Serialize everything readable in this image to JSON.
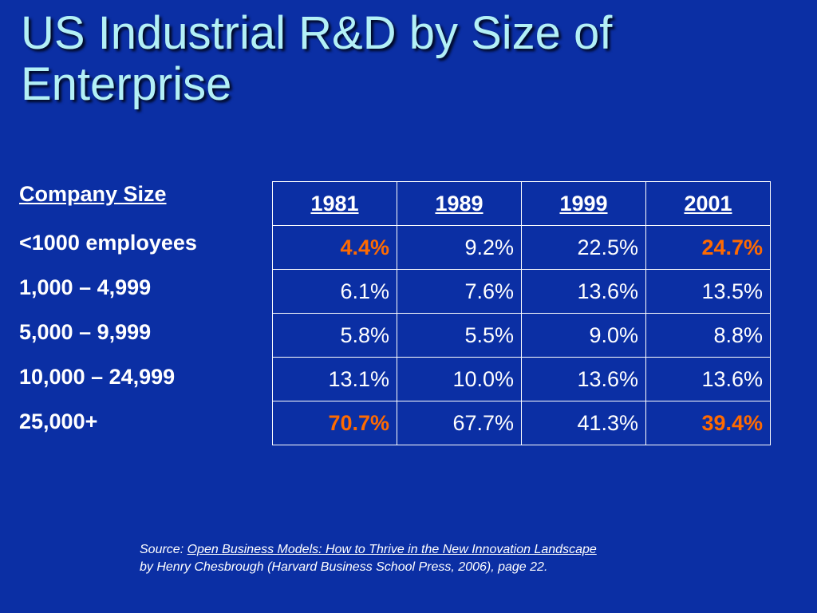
{
  "slide": {
    "title": "US Industrial R&D by Size of Enterprise"
  },
  "company_size": {
    "header": "Company Size",
    "rows": [
      "<1000 employees",
      "1,000 – 4,999",
      "5,000 – 9,999",
      "10,000 – 24,999",
      "25,000+"
    ]
  },
  "table": {
    "headers": [
      "1981",
      "1989",
      "1999",
      "2001"
    ],
    "rows": [
      [
        "4.4%",
        "9.2%",
        "22.5%",
        "24.7%"
      ],
      [
        "6.1%",
        "7.6%",
        "13.6%",
        "13.5%"
      ],
      [
        "5.8%",
        "5.5%",
        "9.0%",
        "8.8%"
      ],
      [
        "13.1%",
        "10.0%",
        "13.6%",
        "13.6%"
      ],
      [
        "70.7%",
        "67.7%",
        "41.3%",
        "39.4%"
      ]
    ],
    "highlight_color": "#ff6a00"
  },
  "source": {
    "prefix": "Source: ",
    "book_title": "Open Business Models: How to Thrive in the New Innovation Landscape",
    "line2": "by Henry Chesbrough (Harvard Business School Press, 2006), page 22."
  },
  "colors": {
    "background": "#0b2fa4",
    "title": "#b3f0f6",
    "text": "#ffffff",
    "highlight": "#ff6a00"
  }
}
